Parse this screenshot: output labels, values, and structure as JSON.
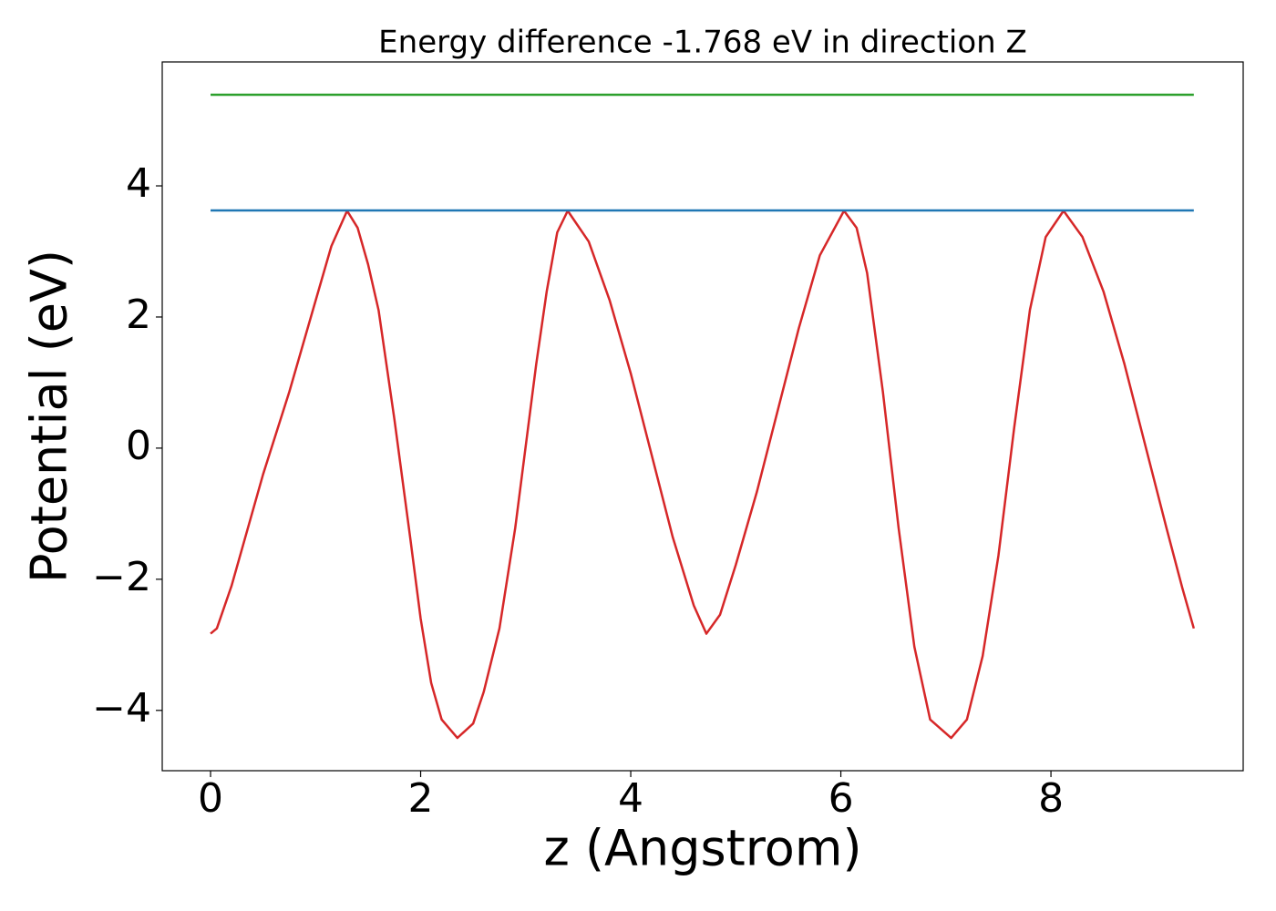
{
  "chart_data": {
    "type": "line",
    "title": "Energy difference -1.768 eV in direction Z",
    "xlabel": "z (Angstrom)",
    "ylabel": "Potential (eV)",
    "xlim": [
      -0.46,
      9.83
    ],
    "ylim": [
      -4.92,
      5.89
    ],
    "xticks": [
      0,
      2,
      4,
      6,
      8
    ],
    "yticks": [
      {
        "value": -4,
        "label": "−4"
      },
      {
        "value": -2,
        "label": "−2"
      },
      0,
      2,
      4
    ],
    "series": [
      {
        "color": "#d62728",
        "x": [
          0,
          0.06,
          0.2,
          0.5,
          0.75,
          1.0,
          1.15,
          1.3,
          1.4,
          1.5,
          1.6,
          1.75,
          1.9,
          2.0,
          2.1,
          2.2,
          2.35,
          2.5,
          2.6,
          2.75,
          2.9,
          3.0,
          3.1,
          3.2,
          3.3,
          3.4,
          3.6,
          3.8,
          4.0,
          4.2,
          4.4,
          4.6,
          4.72,
          4.85,
          5.0,
          5.2,
          5.4,
          5.6,
          5.8,
          6.03,
          6.15,
          6.25,
          6.4,
          6.55,
          6.7,
          6.85,
          7.05,
          7.2,
          7.35,
          7.5,
          7.65,
          7.8,
          7.95,
          8.12,
          8.3,
          8.5,
          8.7,
          8.9,
          9.1,
          9.25,
          9.36
        ],
        "values": [
          -2.83,
          -2.75,
          -2.1,
          -0.4,
          0.86,
          2.25,
          3.08,
          3.62,
          3.36,
          2.8,
          2.1,
          0.44,
          -1.36,
          -2.6,
          -3.58,
          -4.14,
          -4.42,
          -4.2,
          -3.72,
          -2.75,
          -1.22,
          0.03,
          1.28,
          2.39,
          3.29,
          3.62,
          3.15,
          2.25,
          1.14,
          -0.11,
          -1.36,
          -2.4,
          -2.83,
          -2.54,
          -1.78,
          -0.67,
          0.58,
          1.83,
          2.94,
          3.62,
          3.36,
          2.67,
          0.86,
          -1.22,
          -3.03,
          -4.14,
          -4.42,
          -4.14,
          -3.17,
          -1.64,
          0.31,
          2.11,
          3.22,
          3.62,
          3.22,
          2.39,
          1.28,
          0.03,
          -1.22,
          -2.13,
          -2.75
        ]
      },
      {
        "color": "#1f77b4",
        "x": [
          0,
          9.36
        ],
        "values": [
          3.625,
          3.625
        ]
      },
      {
        "color": "#2ca02c",
        "x": [
          0,
          9.36
        ],
        "values": [
          5.39,
          5.39
        ]
      }
    ]
  }
}
